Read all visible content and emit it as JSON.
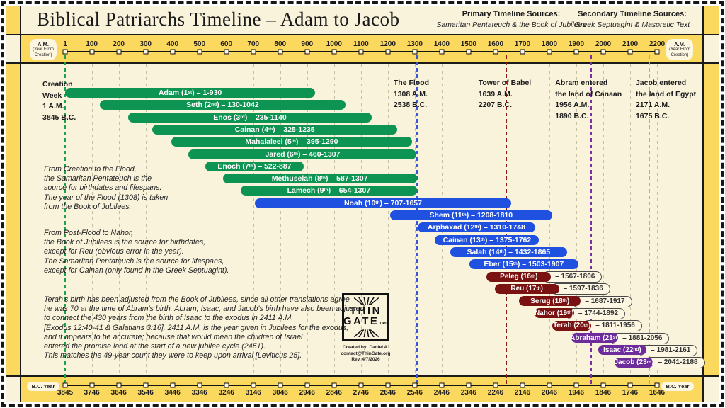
{
  "title": "Biblical Patriarchs Timeline – Adam to Jacob",
  "sources": {
    "primary_label": "Primary Timeline Sources:",
    "primary_value": "Samaritan Pentateuch & the Book of Jubilees",
    "secondary_label": "Secondary Timeline Sources:",
    "secondary_value": "Greek Septuagint & Masoretic Text"
  },
  "axis_pills": {
    "am_line1": "A.M.",
    "am_line2": "(Year From",
    "am_line3": "Creation)",
    "bc": "B.C. Year"
  },
  "notes": [
    [
      "From Creation to the Flood,",
      "the Samaritan Pentateuch is the",
      "source for birthdates and lifespans.",
      "The year of the Flood (1308) is taken",
      "from the Book of Jubilees."
    ],
    [
      "From Post-Flood to Nahor,",
      "the Book of Jubilees is the source for birthdates,",
      "except for Reu (obvious error in the year).",
      "The Samaritan Pentateuch is the source for lifespans,",
      "except for Cainan (only found in the Greek Septuagint)."
    ],
    [
      "Terah's birth has been adjusted from the Book of Jubilees, since all other translations agree",
      "he was 70 at the time of Abram's birth. Abram, Isaac, and Jacob's birth have also been adjusted,",
      "to connect the 430 years from the birth of Isaac to the exodus in 2411 A.M.",
      "[Exodus 12:40-41 & Galatians 3:16]. 2411 A.M. is the year given in Jubilees for the exodus,",
      "and it appears to be accurate; because that would mean the children of Israel",
      "entered the promise land at the start of a new jubilee cycle (2451).",
      "This matches the 49-year count they were to keep upon arrival [Leviticus 25]."
    ]
  ],
  "logo": {
    "line1": "THIN",
    "line2": "GATE",
    "suffix": ".ORG",
    "credits": [
      "Created by: Daniel A.",
      "contact@ThinGate.org",
      "Rev. 4/7/2026"
    ]
  },
  "chart_data": {
    "type": "bar",
    "subtype": "horizontal-range-timeline (gantt-style lifespans)",
    "x_axis_top": {
      "label": "A.M. (Year From Creation)",
      "ticks": [
        1,
        100,
        200,
        300,
        400,
        500,
        600,
        700,
        800,
        900,
        1000,
        1100,
        1200,
        1300,
        1400,
        1500,
        1600,
        1700,
        1800,
        1900,
        2000,
        2100,
        2200
      ]
    },
    "x_axis_bottom": {
      "label": "B.C. Year",
      "ticks": [
        3845,
        3746,
        3646,
        3546,
        3446,
        3346,
        3246,
        3146,
        3046,
        2946,
        2846,
        2746,
        2646,
        2546,
        2446,
        2346,
        2246,
        2146,
        2046,
        1946,
        1846,
        1746,
        1646
      ]
    },
    "groups": {
      "green": "#0e9452",
      "blue": "#2050e0",
      "maroon": "#7a1212",
      "purple": "#6e2b9c"
    },
    "patriarchs": [
      {
        "name": "Adam",
        "order": 1,
        "suffix": "st",
        "born": 1,
        "died": 930,
        "group": "green"
      },
      {
        "name": "Seth",
        "order": 2,
        "suffix": "nd",
        "born": 130,
        "died": 1042,
        "group": "green"
      },
      {
        "name": "Enos",
        "order": 3,
        "suffix": "rd",
        "born": 235,
        "died": 1140,
        "group": "green"
      },
      {
        "name": "Cainan",
        "order": 4,
        "suffix": "th",
        "born": 325,
        "died": 1235,
        "group": "green"
      },
      {
        "name": "Mahalaleel",
        "order": 5,
        "suffix": "th",
        "born": 395,
        "died": 1290,
        "group": "green"
      },
      {
        "name": "Jared",
        "order": 6,
        "suffix": "th",
        "born": 460,
        "died": 1307,
        "group": "green"
      },
      {
        "name": "Enoch",
        "order": 7,
        "suffix": "th",
        "born": 522,
        "died": 887,
        "group": "green"
      },
      {
        "name": "Methuselah",
        "order": 8,
        "suffix": "th",
        "born": 587,
        "died": 1307,
        "group": "green"
      },
      {
        "name": "Lamech",
        "order": 9,
        "suffix": "th",
        "born": 654,
        "died": 1307,
        "group": "green"
      },
      {
        "name": "Noah",
        "order": 10,
        "suffix": "th",
        "born": 707,
        "died": 1657,
        "group": "blue"
      },
      {
        "name": "Shem",
        "order": 11,
        "suffix": "th",
        "born": 1208,
        "died": 1810,
        "group": "blue"
      },
      {
        "name": "Arphaxad",
        "order": 12,
        "suffix": "th",
        "born": 1310,
        "died": 1748,
        "group": "blue"
      },
      {
        "name": "Cainan",
        "order": 13,
        "suffix": "th",
        "born": 1375,
        "died": 1762,
        "group": "blue"
      },
      {
        "name": "Salah",
        "order": 14,
        "suffix": "th",
        "born": 1432,
        "died": 1865,
        "group": "blue"
      },
      {
        "name": "Eber",
        "order": 15,
        "suffix": "th",
        "born": 1503,
        "died": 1907,
        "group": "blue"
      },
      {
        "name": "Peleg",
        "order": 16,
        "suffix": "th",
        "born": 1567,
        "died": 1806,
        "group": "maroon"
      },
      {
        "name": "Reu",
        "order": 17,
        "suffix": "th",
        "born": 1597,
        "died": 1836,
        "group": "maroon"
      },
      {
        "name": "Serug",
        "order": 18,
        "suffix": "th",
        "born": 1687,
        "died": 1917,
        "group": "maroon"
      },
      {
        "name": "Nahor",
        "order": 19,
        "suffix": "th",
        "born": 1744,
        "died": 1892,
        "group": "maroon"
      },
      {
        "name": "Terah",
        "order": 20,
        "suffix": "th",
        "born": 1811,
        "died": 1956,
        "group": "maroon"
      },
      {
        "name": "Abraham",
        "order": 21,
        "suffix": "st",
        "born": 1881,
        "died": 2056,
        "group": "purple"
      },
      {
        "name": "Isaac",
        "order": 22,
        "suffix": "nd",
        "born": 1981,
        "died": 2161,
        "group": "purple"
      },
      {
        "name": "Jacob",
        "order": 23,
        "suffix": "rd",
        "born": 2041,
        "died": 2188,
        "group": "purple"
      }
    ],
    "events": [
      {
        "id": "creation",
        "year": 1,
        "color": "#1ca24e",
        "lines": [
          "Creation",
          "Week",
          "1 A.M.",
          "3845 B.C."
        ]
      },
      {
        "id": "flood",
        "year": 1308,
        "color": "#3a57d6",
        "lines": [
          "The Flood",
          "1308 A.M.",
          "2538 B.C."
        ]
      },
      {
        "id": "babel",
        "year": 1639,
        "color": "#8e1c12",
        "lines": [
          "Tower of Babel",
          "1639 A.M.",
          "2207 B.C."
        ]
      },
      {
        "id": "canaan",
        "year": 1956,
        "color": "#7b2fa3",
        "lines": [
          "Abram entered",
          "the land of Canaan",
          "1956 A.M.",
          "1890 B.C."
        ]
      },
      {
        "id": "egypt",
        "year": 2171,
        "color": "#ef9d4a",
        "lines": [
          "Jacob entered",
          "the land of Egypt",
          "2171 A.M.",
          "1675 B.C."
        ]
      }
    ]
  }
}
